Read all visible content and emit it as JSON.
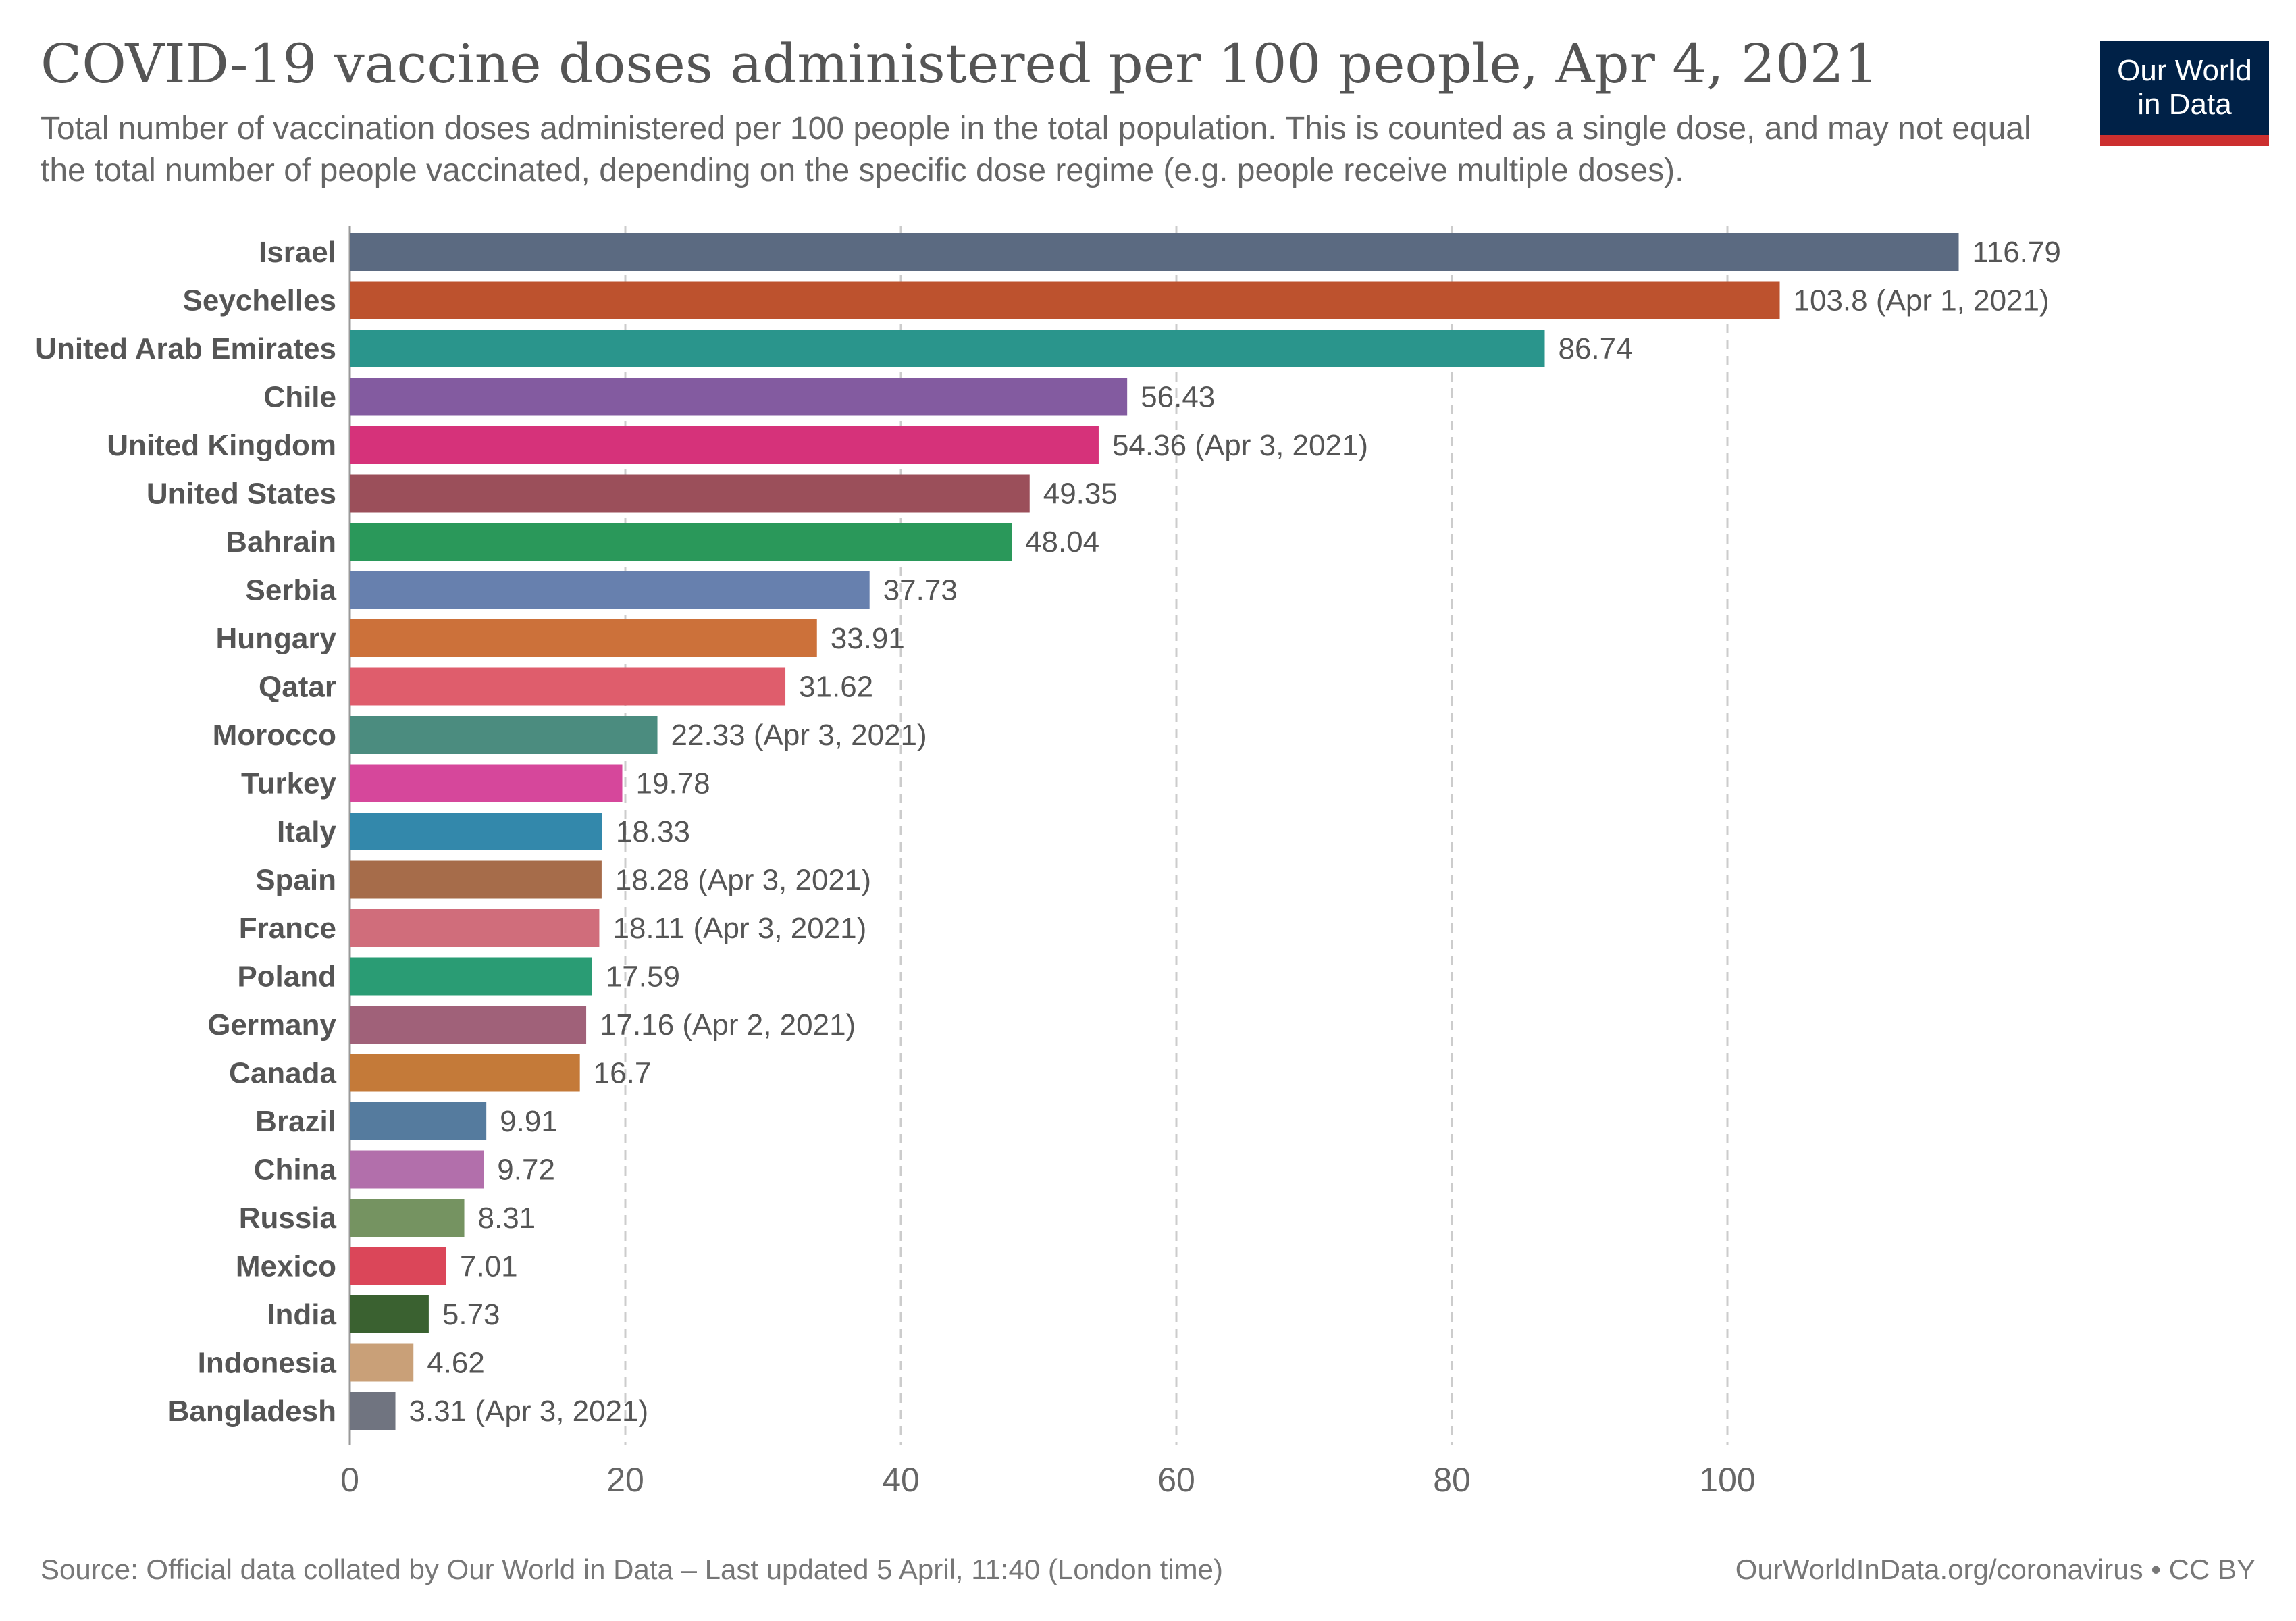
{
  "header": {
    "title": "COVID-19 vaccine doses administered per 100 people, Apr 4, 2021",
    "subtitle": "Total number of vaccination doses administered per 100 people in the total population. This is counted as a single dose, and may not equal the total number of people vaccinated, depending on the specific dose regime (e.g. people receive multiple doses).",
    "logo_line1": "Our World",
    "logo_line2": "in Data"
  },
  "footer": {
    "source": "Source: Official data collated by Our World in Data – Last updated 5 April, 11:40 (London time)",
    "attribution": "OurWorldInData.org/coronavirus • CC BY"
  },
  "colors": {
    "logo_bg": "#002147",
    "logo_accent": "#cc2f2f"
  },
  "chart_data": {
    "type": "bar",
    "orientation": "horizontal",
    "grid": "vertical-dashed",
    "xlim": [
      0,
      120
    ],
    "xticks": [
      0,
      20,
      40,
      60,
      80,
      100
    ],
    "categories": [
      "Israel",
      "Seychelles",
      "United Arab Emirates",
      "Chile",
      "United Kingdom",
      "United States",
      "Bahrain",
      "Serbia",
      "Hungary",
      "Qatar",
      "Morocco",
      "Turkey",
      "Italy",
      "Spain",
      "France",
      "Poland",
      "Germany",
      "Canada",
      "Brazil",
      "China",
      "Russia",
      "Mexico",
      "India",
      "Indonesia",
      "Bangladesh"
    ],
    "values": [
      116.79,
      103.8,
      86.74,
      56.43,
      54.36,
      49.35,
      48.04,
      37.73,
      33.91,
      31.62,
      22.33,
      19.78,
      18.33,
      18.28,
      18.11,
      17.59,
      17.16,
      16.7,
      9.91,
      9.72,
      8.31,
      7.01,
      5.73,
      4.62,
      3.31
    ],
    "labels": [
      "116.79",
      "103.8 (Apr 1, 2021)",
      "86.74",
      "56.43",
      "54.36 (Apr 3, 2021)",
      "49.35",
      "48.04",
      "37.73",
      "33.91",
      "31.62",
      "22.33 (Apr 3, 2021)",
      "19.78",
      "18.33",
      "18.28 (Apr 3, 2021)",
      "18.11 (Apr 3, 2021)",
      "17.59",
      "17.16 (Apr 2, 2021)",
      "16.7",
      "9.91",
      "9.72",
      "8.31",
      "7.01",
      "5.73",
      "4.62",
      "3.31 (Apr 3, 2021)"
    ],
    "colors": [
      "#5b6a81",
      "#bd522e",
      "#2a958c",
      "#835ba0",
      "#d6327a",
      "#9b4f5a",
      "#2a985a",
      "#6780ae",
      "#cc713a",
      "#df5d6c",
      "#4b8c7f",
      "#d6479b",
      "#3388ab",
      "#a66c4a",
      "#d06d7b",
      "#2a9c74",
      "#a06179",
      "#c47a39",
      "#557b9e",
      "#b26fab",
      "#759361",
      "#db4659",
      "#3a6130",
      "#c9a078",
      "#707480"
    ]
  }
}
